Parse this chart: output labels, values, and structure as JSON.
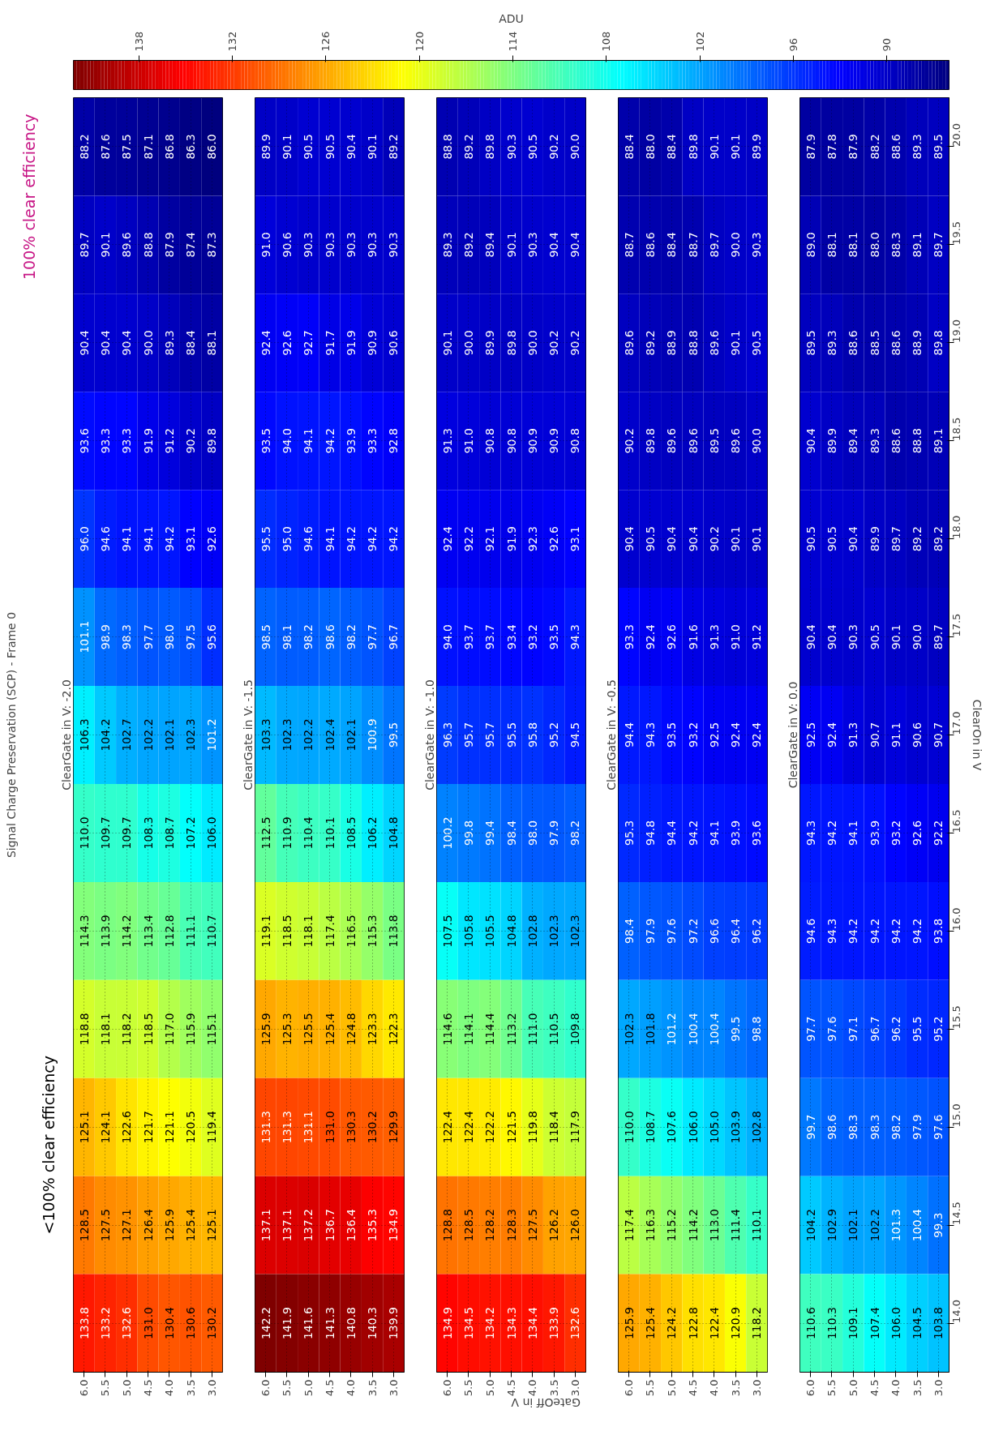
{
  "chart_data": [
    {
      "type": "heatmap",
      "data_labels": true,
      "title": "Signal Charge Preservation (SCP) - Frame 0",
      "subtitle": "ClearGate in V: -2.0",
      "clabel": "ADU",
      "clim": [
        86.0,
        142.2
      ],
      "cticks": [
        90,
        96,
        102,
        108,
        114,
        120,
        126,
        132,
        138
      ],
      "annotations": [
        "<100% clear efficiency",
        "100% clear efficiency"
      ],
      "tick_labels": "x",
      "grid": true,
      "categories": [
        "6.0",
        "5.5",
        "5.0",
        "4.5",
        "4.0",
        "3.5",
        "3.0"
      ],
      "y_categories": [
        "20.0",
        "19.5",
        "19.0",
        "18.5",
        "18.0",
        "17.5",
        "17.0",
        "16.5",
        "16.0",
        "15.5",
        "15.0",
        "14.5",
        "14.0"
      ],
      "cells": [
        [
          88.2,
          87.6,
          87.5,
          87.1,
          86.8,
          86.3,
          86.0
        ],
        [
          89.7,
          90.1,
          89.6,
          88.8,
          87.9,
          87.4,
          87.3
        ],
        [
          90.4,
          90.4,
          90.4,
          90.0,
          89.3,
          88.4,
          88.1
        ],
        [
          93.6,
          93.3,
          93.3,
          91.9,
          91.2,
          90.2,
          89.8
        ],
        [
          96.0,
          94.6,
          94.1,
          94.1,
          94.2,
          93.1,
          92.6
        ],
        [
          101.1,
          98.9,
          98.3,
          97.7,
          98.0,
          97.5,
          95.6
        ],
        [
          106.3,
          104.2,
          102.7,
          102.2,
          102.1,
          102.3,
          101.2
        ],
        [
          110.0,
          109.7,
          109.7,
          108.3,
          108.7,
          107.2,
          106.0
        ],
        [
          114.3,
          113.9,
          114.2,
          113.4,
          112.8,
          111.1,
          110.7
        ],
        [
          118.8,
          118.1,
          118.2,
          118.5,
          117.0,
          115.9,
          115.1
        ],
        [
          125.1,
          124.1,
          122.6,
          121.7,
          121.1,
          120.5,
          119.4
        ],
        [
          128.5,
          127.5,
          127.1,
          126.4,
          125.9,
          125.4,
          125.1
        ],
        [
          133.8,
          133.2,
          132.6,
          131.0,
          130.4,
          130.6,
          130.2
        ]
      ],
      "cell_labels": [
        [
          "88.2",
          "87.6",
          "87.5",
          "87.1",
          "86.8",
          "86.3",
          "86.0"
        ],
        [
          "89.7",
          "90.1",
          "89.6",
          "88.8",
          "87.9",
          "87.4",
          "87.3"
        ],
        [
          "90.4",
          "90.4",
          "90.4",
          "90.0",
          "89.3",
          "88.4",
          "88.1"
        ],
        [
          "93.6",
          "93.3",
          "93.3",
          "91.9",
          "91.2",
          "90.2",
          "89.8"
        ],
        [
          "96.0",
          "94.6",
          "94.1",
          "94.1",
          "94.2",
          "93.1",
          "92.6"
        ],
        [
          "101.1",
          "98.9",
          "98.3",
          "97.7",
          "98.0",
          "97.5",
          "95.6"
        ],
        [
          "106.3",
          "104.2",
          "102.7",
          "102.2",
          "102.1",
          "102.3",
          "101.2"
        ],
        [
          "110.0",
          "109.7",
          "109.7",
          "108.3",
          "108.7",
          "107.2",
          "106.0"
        ],
        [
          "114.3",
          "113.9",
          "114.2",
          "113.4",
          "112.8",
          "111.1",
          "110.7"
        ],
        [
          "118.8",
          "118.1",
          "118.2",
          "118.5",
          "117.0",
          "115.9",
          "115.1"
        ],
        [
          "125.1",
          "124.1",
          "122.6",
          "121.7",
          "121.1",
          "120.5",
          "119.4"
        ],
        [
          "128.5",
          "127.5",
          "127.1",
          "126.4",
          "125.9",
          "125.4",
          "125.1"
        ],
        [
          "133.8",
          "133.2",
          "132.6",
          "131.0",
          "130.4",
          "130.6",
          "130.2"
        ]
      ]
    },
    {
      "type": "heatmap",
      "data_labels": true,
      "subtitle": "ClearGate in V: -1.5",
      "tick_labels": "x",
      "grid": true,
      "categories": [
        "6.0",
        "5.5",
        "5.0",
        "4.5",
        "4.0",
        "3.5",
        "3.0"
      ],
      "y_categories": [
        "20.0",
        "19.5",
        "19.0",
        "18.5",
        "18.0",
        "17.5",
        "17.0",
        "16.5",
        "16.0",
        "15.5",
        "15.0",
        "14.5",
        "14.0"
      ],
      "cells": [
        [
          89.9,
          90.1,
          90.5,
          90.5,
          90.4,
          90.1,
          89.2
        ],
        [
          91.0,
          90.6,
          90.3,
          90.3,
          90.3,
          90.3,
          90.3
        ],
        [
          92.4,
          92.6,
          92.7,
          91.7,
          91.9,
          90.9,
          90.6
        ],
        [
          93.5,
          94.0,
          94.1,
          94.2,
          93.9,
          93.3,
          92.8
        ],
        [
          95.5,
          95.0,
          94.6,
          94.1,
          94.2,
          94.2,
          94.2
        ],
        [
          98.5,
          98.1,
          98.2,
          98.6,
          98.2,
          97.7,
          96.7
        ],
        [
          103.3,
          102.3,
          102.2,
          102.4,
          102.1,
          100.9,
          99.5
        ],
        [
          112.5,
          110.9,
          110.4,
          110.1,
          108.5,
          106.2,
          104.8
        ],
        [
          119.1,
          118.5,
          118.1,
          117.4,
          116.5,
          115.3,
          113.8
        ],
        [
          125.9,
          125.3,
          125.5,
          125.4,
          124.8,
          123.3,
          122.3
        ],
        [
          131.3,
          131.3,
          131.1,
          131.0,
          130.3,
          130.2,
          129.9
        ],
        [
          137.1,
          137.1,
          137.2,
          136.7,
          136.4,
          135.3,
          134.9
        ],
        [
          142.2,
          141.9,
          141.6,
          141.3,
          140.8,
          140.3,
          139.9
        ]
      ],
      "cell_labels": [
        [
          "89.9",
          "90.1",
          "90.5",
          "90.5",
          "90.4",
          "90.1",
          "89.2"
        ],
        [
          "91.0",
          "90.6",
          "90.3",
          "90.3",
          "90.3",
          "90.3",
          "90.3"
        ],
        [
          "92.4",
          "92.6",
          "92.7",
          "91.7",
          "91.9",
          "90.9",
          "90.6"
        ],
        [
          "93.5",
          "94.0",
          "94.1",
          "94.2",
          "93.9",
          "93.3",
          "92.8"
        ],
        [
          "95.5",
          "95.0",
          "94.6",
          "94.1",
          "94.2",
          "94.2",
          "94.2"
        ],
        [
          "98.5",
          "98.1",
          "98.2",
          "98.6",
          "98.2",
          "97.7",
          "96.7"
        ],
        [
          "103.3",
          "102.3",
          "102.2",
          "102.4",
          "102.1",
          "100.9",
          "99.5"
        ],
        [
          "112.5",
          "110.9",
          "110.4",
          "110.1",
          "108.5",
          "106.2",
          "104.8"
        ],
        [
          "119.1",
          "118.5",
          "118.1",
          "117.4",
          "116.5",
          "115.3",
          "113.8"
        ],
        [
          "125.9",
          "125.3",
          "125.5",
          "125.4",
          "124.8",
          "123.3",
          "122.3"
        ],
        [
          "131.3",
          "131.3",
          "131.1",
          "131.0",
          "130.3",
          "130.2",
          "129.9"
        ],
        [
          "137.1",
          "137.1",
          "137.2",
          "136.7",
          "136.4",
          "135.3",
          "134.9"
        ],
        [
          "142.2",
          "141.9",
          "141.6",
          "141.3",
          "140.8",
          "140.3",
          "139.9"
        ]
      ]
    },
    {
      "type": "heatmap",
      "data_labels": true,
      "subtitle": "ClearGate in V: -1.0",
      "xlabel": "GateOff in V",
      "tick_labels": "x",
      "grid": true,
      "categories": [
        "6.0",
        "5.5",
        "5.0",
        "4.5",
        "4.0",
        "3.5",
        "3.0"
      ],
      "y_categories": [
        "20.0",
        "19.5",
        "19.0",
        "18.5",
        "18.0",
        "17.5",
        "17.0",
        "16.5",
        "16.0",
        "15.5",
        "15.0",
        "14.5",
        "14.0"
      ],
      "cells": [
        [
          88.8,
          89.2,
          89.8,
          90.3,
          90.5,
          90.2,
          90.0
        ],
        [
          89.3,
          89.2,
          89.4,
          90.1,
          90.3,
          90.4,
          90.4
        ],
        [
          90.1,
          90.0,
          89.9,
          89.8,
          90.0,
          90.2,
          90.2
        ],
        [
          91.3,
          91.0,
          90.8,
          90.8,
          90.9,
          90.9,
          90.8
        ],
        [
          92.4,
          92.2,
          92.1,
          91.9,
          92.3,
          92.6,
          93.1
        ],
        [
          94.0,
          93.7,
          93.7,
          93.4,
          93.2,
          93.5,
          94.3
        ],
        [
          96.3,
          95.7,
          95.7,
          95.5,
          95.8,
          95.2,
          94.5
        ],
        [
          100.2,
          99.8,
          99.4,
          98.4,
          98.0,
          97.9,
          98.2
        ],
        [
          107.5,
          105.8,
          105.5,
          104.8,
          102.8,
          102.3,
          102.3
        ],
        [
          114.6,
          114.1,
          114.4,
          113.2,
          111.0,
          110.5,
          109.8
        ],
        [
          122.4,
          122.4,
          122.2,
          121.5,
          119.8,
          118.4,
          117.9
        ],
        [
          128.8,
          128.5,
          128.2,
          128.3,
          127.5,
          126.2,
          126.0
        ],
        [
          134.9,
          134.5,
          134.2,
          134.3,
          134.4,
          133.9,
          132.6
        ]
      ],
      "cell_labels": [
        [
          "88.8",
          "89.2",
          "89.8",
          "90.3",
          "90.5",
          "90.2",
          "90.0"
        ],
        [
          "89.3",
          "89.2",
          "89.4",
          "90.1",
          "90.3",
          "90.4",
          "90.4"
        ],
        [
          "90.1",
          "90.0",
          "89.9",
          "89.8",
          "90.0",
          "90.2",
          "90.2"
        ],
        [
          "91.3",
          "91.0",
          "90.8",
          "90.8",
          "90.9",
          "90.9",
          "90.8"
        ],
        [
          "92.4",
          "92.2",
          "92.1",
          "91.9",
          "92.3",
          "92.6",
          "93.1"
        ],
        [
          "94.0",
          "93.7",
          "93.7",
          "93.4",
          "93.2",
          "93.5",
          "94.3"
        ],
        [
          "96.3",
          "95.7",
          "95.7",
          "95.5",
          "95.8",
          "95.2",
          "94.5"
        ],
        [
          "100.2",
          "99.8",
          "99.4",
          "98.4",
          "98.0",
          "97.9",
          "98.2"
        ],
        [
          "107.5",
          "105.8",
          "105.5",
          "104.8",
          "102.8",
          "102.3",
          "102.3"
        ],
        [
          "114.6",
          "114.1",
          "114.4",
          "113.2",
          "111.0",
          "110.5",
          "109.8"
        ],
        [
          "122.4",
          "122.4",
          "122.2",
          "121.5",
          "119.8",
          "118.4",
          "117.9"
        ],
        [
          "128.8",
          "128.5",
          "128.2",
          "128.3",
          "127.5",
          "126.2",
          "126.0"
        ],
        [
          "134.9",
          "134.5",
          "134.2",
          "134.3",
          "134.4",
          "133.9",
          "132.6"
        ]
      ]
    },
    {
      "type": "heatmap",
      "data_labels": true,
      "subtitle": "ClearGate in V: -0.5",
      "tick_labels": "x",
      "grid": true,
      "categories": [
        "6.0",
        "5.5",
        "5.0",
        "4.5",
        "4.0",
        "3.5",
        "3.0"
      ],
      "y_categories": [
        "20.0",
        "19.5",
        "19.0",
        "18.5",
        "18.0",
        "17.5",
        "17.0",
        "16.5",
        "16.0",
        "15.5",
        "15.0",
        "14.5",
        "14.0"
      ],
      "cells": [
        [
          88.4,
          88.0,
          88.4,
          89.8,
          90.1,
          90.1,
          89.9
        ],
        [
          88.7,
          88.6,
          88.4,
          88.7,
          89.7,
          90.0,
          90.3
        ],
        [
          89.6,
          89.2,
          88.9,
          88.8,
          89.6,
          90.1,
          90.5
        ],
        [
          90.2,
          89.8,
          89.6,
          89.6,
          89.5,
          89.6,
          90.0
        ],
        [
          90.4,
          90.5,
          90.4,
          90.4,
          90.2,
          90.1,
          90.1
        ],
        [
          93.3,
          92.4,
          92.6,
          91.6,
          91.3,
          91.0,
          91.2
        ],
        [
          94.4,
          94.3,
          93.5,
          93.2,
          92.5,
          92.4,
          92.4
        ],
        [
          95.3,
          94.8,
          94.4,
          94.2,
          94.1,
          93.9,
          93.6
        ],
        [
          98.4,
          97.9,
          97.6,
          97.2,
          96.6,
          96.4,
          96.2
        ],
        [
          102.3,
          101.8,
          101.2,
          100.4,
          100.4,
          99.5,
          98.8
        ],
        [
          110.0,
          108.7,
          107.6,
          106.0,
          105.0,
          103.9,
          102.8
        ],
        [
          117.4,
          116.3,
          115.2,
          114.2,
          113.0,
          111.4,
          110.1
        ],
        [
          125.9,
          125.4,
          124.2,
          122.8,
          122.4,
          120.9,
          118.2
        ]
      ],
      "cell_labels": [
        [
          "88.4",
          "88.0",
          "88.4",
          "89.8",
          "90.1",
          "90.1",
          "89.9"
        ],
        [
          "88.7",
          "88.6",
          "88.4",
          "88.7",
          "89.7",
          "90.0",
          "90.3"
        ],
        [
          "89.6",
          "89.2",
          "88.9",
          "88.8",
          "89.6",
          "90.1",
          "90.5"
        ],
        [
          "90.2",
          "89.8",
          "89.6",
          "89.6",
          "89.5",
          "89.6",
          "90.0"
        ],
        [
          "90.4",
          "90.5",
          "90.4",
          "90.4",
          "90.2",
          "90.1",
          "90.1"
        ],
        [
          "93.3",
          "92.4",
          "92.6",
          "91.6",
          "91.3",
          "91.0",
          "91.2"
        ],
        [
          "94.4",
          "94.3",
          "93.5",
          "93.2",
          "92.5",
          "92.4",
          "92.4"
        ],
        [
          "95.3",
          "94.8",
          "94.4",
          "94.2",
          "94.1",
          "93.9",
          "93.6"
        ],
        [
          "98.4",
          "97.9",
          "97.6",
          "97.2",
          "96.6",
          "96.4",
          "96.2"
        ],
        [
          "102.3",
          "101.8",
          "101.2",
          "100.4",
          "100.4",
          "99.5",
          "98.8"
        ],
        [
          "110.0",
          "108.7",
          "107.6",
          "106.0",
          "105.0",
          "103.9",
          "102.8"
        ],
        [
          "117.4",
          "116.3",
          "115.2",
          "114.2",
          "113.0",
          "111.4",
          "110.1"
        ],
        [
          "125.9",
          "125.4",
          "124.2",
          "122.8",
          "122.4",
          "120.9",
          "118.2"
        ]
      ]
    },
    {
      "type": "heatmap",
      "data_labels": true,
      "subtitle": "ClearGate in V: 0.0",
      "ylabel": "ClearOn in V",
      "grid": true,
      "categories": [
        "6.0",
        "5.5",
        "5.0",
        "4.5",
        "4.0",
        "3.5",
        "3.0"
      ],
      "y_categories": [
        "20.0",
        "19.5",
        "19.0",
        "18.5",
        "18.0",
        "17.5",
        "17.0",
        "16.5",
        "16.0",
        "15.5",
        "15.0",
        "14.5",
        "14.0"
      ],
      "cells": [
        [
          87.9,
          87.8,
          87.9,
          88.2,
          88.6,
          89.3,
          89.5
        ],
        [
          89.0,
          88.1,
          88.1,
          88.0,
          88.3,
          89.1,
          89.7
        ],
        [
          89.5,
          89.3,
          88.6,
          88.5,
          88.6,
          88.9,
          89.8
        ],
        [
          90.4,
          89.9,
          89.4,
          89.3,
          88.6,
          88.8,
          89.1
        ],
        [
          90.5,
          90.5,
          90.4,
          89.9,
          89.7,
          89.2,
          89.2
        ],
        [
          90.4,
          90.4,
          90.3,
          90.5,
          90.1,
          90.0,
          89.7
        ],
        [
          92.5,
          92.4,
          91.3,
          90.7,
          91.1,
          90.6,
          90.7
        ],
        [
          94.3,
          94.2,
          94.1,
          93.9,
          93.2,
          92.6,
          92.2
        ],
        [
          94.6,
          94.3,
          94.2,
          94.2,
          94.2,
          94.2,
          93.8
        ],
        [
          97.7,
          97.6,
          97.1,
          96.7,
          96.2,
          95.5,
          95.2
        ],
        [
          99.7,
          98.6,
          98.3,
          98.3,
          98.2,
          97.9,
          97.6
        ],
        [
          104.2,
          102.9,
          102.1,
          102.2,
          101.3,
          100.4,
          99.3
        ],
        [
          110.6,
          110.3,
          109.1,
          107.4,
          106.0,
          104.5,
          103.8
        ]
      ],
      "cell_labels": [
        [
          "87.9",
          "87.8",
          "87.9",
          "88.2",
          "88.6",
          "89.3",
          "89.5"
        ],
        [
          "89.0",
          "88.1",
          "88.1",
          "88.0",
          "88.3",
          "89.1",
          "89.7"
        ],
        [
          "89.5",
          "89.3",
          "88.6",
          "88.5",
          "88.6",
          "88.9",
          "89.8"
        ],
        [
          "90.4",
          "89.9",
          "89.4",
          "89.3",
          "88.6",
          "88.8",
          "89.1"
        ],
        [
          "90.5",
          "90.5",
          "90.4",
          "89.9",
          "89.7",
          "89.2",
          "89.2"
        ],
        [
          "90.4",
          "90.4",
          "90.3",
          "90.5",
          "90.1",
          "90.0",
          "89.7"
        ],
        [
          "92.5",
          "92.4",
          "91.3",
          "90.7",
          "91.1",
          "90.6",
          "90.7"
        ],
        [
          "94.3",
          "94.2",
          "94.1",
          "93.9",
          "93.2",
          "92.6",
          "92.2"
        ],
        [
          "94.6",
          "94.3",
          "94.2",
          "94.2",
          "94.2",
          "94.2",
          "93.8"
        ],
        [
          "97.7",
          "97.6",
          "97.1",
          "96.7",
          "96.2",
          "95.5",
          "95.2"
        ],
        [
          "99.7",
          "98.6",
          "98.3",
          "98.3",
          "98.2",
          "97.9",
          "97.6"
        ],
        [
          "104.2",
          "102.9",
          "102.1",
          "102.2",
          "101.3",
          "100.4",
          "99.3"
        ],
        [
          "110.6",
          "110.3",
          "109.1",
          "107.4",
          "106.0",
          "104.5",
          "103.8"
        ]
      ]
    }
  ]
}
